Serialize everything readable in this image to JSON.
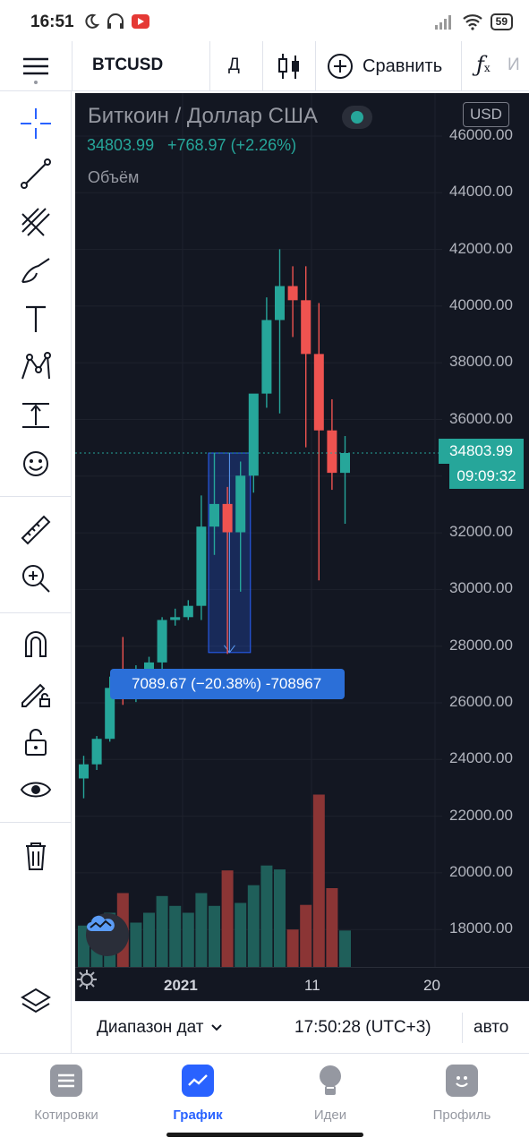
{
  "status_bar": {
    "time": "16:51",
    "battery": "59"
  },
  "toolbar": {
    "symbol": "BTCUSD",
    "interval": "Д",
    "compare_label": "Сравнить",
    "indicators_partial": "И"
  },
  "legend": {
    "title": "Биткоин / Доллар США",
    "price": "34803.99",
    "change": "+768.97 (+2.26%)",
    "volume_label": "Объём",
    "currency": "USD"
  },
  "price_axis": [
    "46000.00",
    "44000.00",
    "42000.00",
    "40000.00",
    "38000.00",
    "36000.00",
    "34000.00",
    "32000.00",
    "30000.00",
    "28000.00",
    "26000.00",
    "24000.00",
    "22000.00",
    "20000.00",
    "18000.00"
  ],
  "last_price_tag": "34803.99",
  "countdown_tag": "09:09:32",
  "measure_tool": {
    "label": "7089.67 (−20.38%) -708967"
  },
  "time_axis": [
    "2021",
    "11",
    "20"
  ],
  "range_bar": {
    "range_label": "Диапазон дат",
    "time": "17:50:28 (UTC+3)",
    "scale": "авто"
  },
  "bottom_nav": [
    {
      "label": "Котировки",
      "icon": "list-icon",
      "active": false
    },
    {
      "label": "График",
      "icon": "chart-icon",
      "active": true
    },
    {
      "label": "Идеи",
      "icon": "bulb-icon",
      "active": false
    },
    {
      "label": "Профиль",
      "icon": "smile-icon",
      "active": false
    }
  ],
  "colors": {
    "up": "#26a69a",
    "down": "#ef5350",
    "up_volume": "#1f5f5a",
    "down_volume": "#8b3535",
    "chart_bg": "#131722",
    "accent": "#2962ff"
  },
  "chart_data": {
    "type": "candlestick",
    "ylim": [
      17000,
      47000
    ],
    "candles": [
      {
        "o": 23300,
        "h": 24100,
        "l": 22600,
        "c": 23800
      },
      {
        "o": 23800,
        "h": 24800,
        "l": 23600,
        "c": 24700
      },
      {
        "o": 24700,
        "h": 26900,
        "l": 24600,
        "c": 26500
      },
      {
        "o": 26500,
        "h": 28300,
        "l": 25900,
        "c": 26300
      },
      {
        "o": 26300,
        "h": 27300,
        "l": 26000,
        "c": 27000
      },
      {
        "o": 27000,
        "h": 27600,
        "l": 26800,
        "c": 27400
      },
      {
        "o": 27400,
        "h": 29000,
        "l": 27100,
        "c": 28900
      },
      {
        "o": 28900,
        "h": 29300,
        "l": 28700,
        "c": 29000
      },
      {
        "o": 29000,
        "h": 29600,
        "l": 28900,
        "c": 29400
      },
      {
        "o": 29400,
        "h": 33300,
        "l": 28900,
        "c": 32200
      },
      {
        "o": 32200,
        "h": 34800,
        "l": 31200,
        "c": 33000
      },
      {
        "o": 33000,
        "h": 33600,
        "l": 27700,
        "c": 32000
      },
      {
        "o": 32000,
        "h": 34500,
        "l": 29900,
        "c": 34000
      },
      {
        "o": 34000,
        "h": 36800,
        "l": 33400,
        "c": 36900
      },
      {
        "o": 36900,
        "h": 40300,
        "l": 36400,
        "c": 39500
      },
      {
        "o": 39500,
        "h": 42000,
        "l": 36200,
        "c": 40700
      },
      {
        "o": 40700,
        "h": 41400,
        "l": 38900,
        "c": 40200
      },
      {
        "o": 40200,
        "h": 41400,
        "l": 35000,
        "c": 38300
      },
      {
        "o": 38300,
        "h": 40100,
        "l": 30300,
        "c": 35600
      },
      {
        "o": 35600,
        "h": 36700,
        "l": 33500,
        "c": 34100
      },
      {
        "o": 34100,
        "h": 35400,
        "l": 32300,
        "c": 34800
      }
    ],
    "volume_up_down": [
      "up",
      "up",
      "up",
      "down",
      "up",
      "up",
      "up",
      "up",
      "up",
      "up",
      "up",
      "down",
      "up",
      "up",
      "up",
      "up",
      "down",
      "down",
      "down",
      "down",
      "up"
    ],
    "volume_relative": [
      0.42,
      0.48,
      0.55,
      0.75,
      0.45,
      0.55,
      0.72,
      0.62,
      0.55,
      0.75,
      0.62,
      0.98,
      0.65,
      0.83,
      1.03,
      0.99,
      0.38,
      0.63,
      1.75,
      0.8,
      0.37
    ]
  }
}
